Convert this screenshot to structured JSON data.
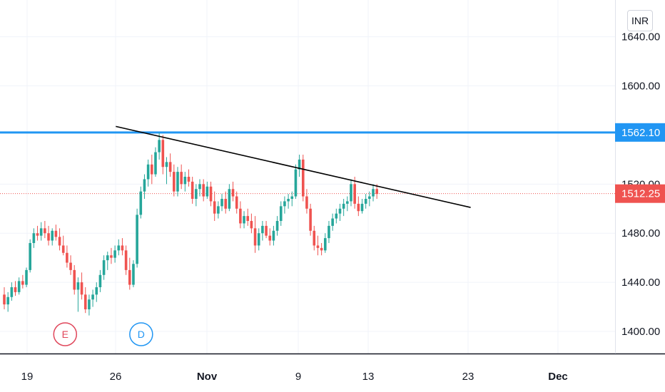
{
  "currency_label": "INR",
  "colors": {
    "up": "#26a69a",
    "down": "#ef5350",
    "h_line": "#2196f3",
    "trend": "#000000",
    "grid": "#f0f3fa"
  },
  "chart_data": {
    "type": "candlestick",
    "y_axis": {
      "range": [
        1382,
        1670
      ],
      "ticks": [
        {
          "v": 1400,
          "label": "1400.00"
        },
        {
          "v": 1440,
          "label": "1440.00"
        },
        {
          "v": 1480,
          "label": "1480.00"
        },
        {
          "v": 1520,
          "label": "1520.00"
        },
        {
          "v": 1600,
          "label": "1600.00"
        },
        {
          "v": 1640,
          "label": "1640.00"
        }
      ]
    },
    "x_axis": {
      "ticks": [
        {
          "label": "19",
          "bold": false
        },
        {
          "label": "26",
          "bold": false
        },
        {
          "label": "Nov",
          "bold": true
        },
        {
          "label": "9",
          "bold": false
        },
        {
          "label": "13",
          "bold": false
        },
        {
          "label": "23",
          "bold": false
        },
        {
          "label": "Dec",
          "bold": true
        }
      ]
    },
    "horizontal_line": {
      "value": 1562.1,
      "label": "1562.10"
    },
    "last_price": {
      "value": 1512.25,
      "label": "1512.25"
    },
    "trendline": {
      "from": {
        "date": "2020-10-26",
        "value": 1567
      },
      "to": {
        "date": "2020-11-23",
        "value": 1501
      }
    },
    "events": [
      {
        "label": "E",
        "date": "2020-10-22",
        "color": "#e0475b"
      },
      {
        "label": "D",
        "date": "2020-10-28",
        "color": "#2196f3"
      }
    ],
    "candles": [
      {
        "o": 1430,
        "h": 1436,
        "l": 1418,
        "c": 1422
      },
      {
        "o": 1422,
        "h": 1432,
        "l": 1416,
        "c": 1428
      },
      {
        "o": 1428,
        "h": 1440,
        "l": 1425,
        "c": 1436
      },
      {
        "o": 1436,
        "h": 1441,
        "l": 1429,
        "c": 1432
      },
      {
        "o": 1432,
        "h": 1444,
        "l": 1430,
        "c": 1441
      },
      {
        "o": 1441,
        "h": 1446,
        "l": 1435,
        "c": 1438
      },
      {
        "o": 1438,
        "h": 1452,
        "l": 1436,
        "c": 1450
      },
      {
        "o": 1450,
        "h": 1475,
        "l": 1448,
        "c": 1472
      },
      {
        "o": 1472,
        "h": 1484,
        "l": 1468,
        "c": 1480
      },
      {
        "o": 1480,
        "h": 1486,
        "l": 1474,
        "c": 1478
      },
      {
        "o": 1478,
        "h": 1489,
        "l": 1474,
        "c": 1484
      },
      {
        "o": 1484,
        "h": 1490,
        "l": 1476,
        "c": 1480
      },
      {
        "o": 1480,
        "h": 1486,
        "l": 1470,
        "c": 1474
      },
      {
        "o": 1474,
        "h": 1484,
        "l": 1470,
        "c": 1482
      },
      {
        "o": 1482,
        "h": 1487,
        "l": 1474,
        "c": 1477
      },
      {
        "o": 1477,
        "h": 1484,
        "l": 1466,
        "c": 1470
      },
      {
        "o": 1470,
        "h": 1478,
        "l": 1462,
        "c": 1464
      },
      {
        "o": 1464,
        "h": 1470,
        "l": 1452,
        "c": 1456
      },
      {
        "o": 1456,
        "h": 1462,
        "l": 1446,
        "c": 1450
      },
      {
        "o": 1450,
        "h": 1454,
        "l": 1430,
        "c": 1434
      },
      {
        "o": 1434,
        "h": 1444,
        "l": 1416,
        "c": 1440
      },
      {
        "o": 1440,
        "h": 1448,
        "l": 1426,
        "c": 1430
      },
      {
        "o": 1430,
        "h": 1436,
        "l": 1415,
        "c": 1418
      },
      {
        "o": 1418,
        "h": 1430,
        "l": 1413,
        "c": 1426
      },
      {
        "o": 1426,
        "h": 1434,
        "l": 1420,
        "c": 1430
      },
      {
        "o": 1430,
        "h": 1440,
        "l": 1424,
        "c": 1436
      },
      {
        "o": 1436,
        "h": 1450,
        "l": 1432,
        "c": 1446
      },
      {
        "o": 1446,
        "h": 1462,
        "l": 1442,
        "c": 1458
      },
      {
        "o": 1458,
        "h": 1465,
        "l": 1450,
        "c": 1462
      },
      {
        "o": 1462,
        "h": 1468,
        "l": 1455,
        "c": 1460
      },
      {
        "o": 1460,
        "h": 1470,
        "l": 1456,
        "c": 1466
      },
      {
        "o": 1466,
        "h": 1475,
        "l": 1462,
        "c": 1470
      },
      {
        "o": 1470,
        "h": 1476,
        "l": 1462,
        "c": 1466
      },
      {
        "o": 1466,
        "h": 1470,
        "l": 1446,
        "c": 1450
      },
      {
        "o": 1450,
        "h": 1460,
        "l": 1434,
        "c": 1438
      },
      {
        "o": 1438,
        "h": 1458,
        "l": 1436,
        "c": 1455
      },
      {
        "o": 1455,
        "h": 1500,
        "l": 1452,
        "c": 1495
      },
      {
        "o": 1495,
        "h": 1518,
        "l": 1492,
        "c": 1514
      },
      {
        "o": 1514,
        "h": 1528,
        "l": 1508,
        "c": 1524
      },
      {
        "o": 1524,
        "h": 1540,
        "l": 1518,
        "c": 1536
      },
      {
        "o": 1536,
        "h": 1544,
        "l": 1520,
        "c": 1528
      },
      {
        "o": 1528,
        "h": 1550,
        "l": 1526,
        "c": 1546
      },
      {
        "o": 1546,
        "h": 1562,
        "l": 1540,
        "c": 1556
      },
      {
        "o": 1556,
        "h": 1560,
        "l": 1528,
        "c": 1534
      },
      {
        "o": 1534,
        "h": 1542,
        "l": 1520,
        "c": 1538
      },
      {
        "o": 1538,
        "h": 1545,
        "l": 1526,
        "c": 1530
      },
      {
        "o": 1530,
        "h": 1536,
        "l": 1510,
        "c": 1514
      },
      {
        "o": 1514,
        "h": 1534,
        "l": 1510,
        "c": 1530
      },
      {
        "o": 1530,
        "h": 1536,
        "l": 1516,
        "c": 1520
      },
      {
        "o": 1520,
        "h": 1530,
        "l": 1514,
        "c": 1526
      },
      {
        "o": 1526,
        "h": 1532,
        "l": 1518,
        "c": 1522
      },
      {
        "o": 1522,
        "h": 1526,
        "l": 1504,
        "c": 1508
      },
      {
        "o": 1508,
        "h": 1520,
        "l": 1502,
        "c": 1516
      },
      {
        "o": 1516,
        "h": 1524,
        "l": 1510,
        "c": 1520
      },
      {
        "o": 1520,
        "h": 1524,
        "l": 1506,
        "c": 1510
      },
      {
        "o": 1510,
        "h": 1522,
        "l": 1508,
        "c": 1518
      },
      {
        "o": 1518,
        "h": 1522,
        "l": 1502,
        "c": 1506
      },
      {
        "o": 1506,
        "h": 1514,
        "l": 1490,
        "c": 1496
      },
      {
        "o": 1496,
        "h": 1506,
        "l": 1492,
        "c": 1502
      },
      {
        "o": 1502,
        "h": 1512,
        "l": 1498,
        "c": 1508
      },
      {
        "o": 1508,
        "h": 1514,
        "l": 1496,
        "c": 1500
      },
      {
        "o": 1500,
        "h": 1520,
        "l": 1498,
        "c": 1516
      },
      {
        "o": 1516,
        "h": 1522,
        "l": 1506,
        "c": 1510
      },
      {
        "o": 1510,
        "h": 1514,
        "l": 1496,
        "c": 1500
      },
      {
        "o": 1500,
        "h": 1506,
        "l": 1484,
        "c": 1488
      },
      {
        "o": 1488,
        "h": 1498,
        "l": 1484,
        "c": 1494
      },
      {
        "o": 1494,
        "h": 1500,
        "l": 1486,
        "c": 1490
      },
      {
        "o": 1490,
        "h": 1496,
        "l": 1480,
        "c": 1484
      },
      {
        "o": 1484,
        "h": 1494,
        "l": 1464,
        "c": 1470
      },
      {
        "o": 1470,
        "h": 1484,
        "l": 1466,
        "c": 1480
      },
      {
        "o": 1480,
        "h": 1490,
        "l": 1474,
        "c": 1486
      },
      {
        "o": 1486,
        "h": 1490,
        "l": 1476,
        "c": 1478
      },
      {
        "o": 1478,
        "h": 1484,
        "l": 1470,
        "c": 1474
      },
      {
        "o": 1474,
        "h": 1486,
        "l": 1470,
        "c": 1482
      },
      {
        "o": 1482,
        "h": 1494,
        "l": 1478,
        "c": 1490
      },
      {
        "o": 1490,
        "h": 1506,
        "l": 1486,
        "c": 1502
      },
      {
        "o": 1502,
        "h": 1510,
        "l": 1496,
        "c": 1506
      },
      {
        "o": 1506,
        "h": 1512,
        "l": 1500,
        "c": 1508
      },
      {
        "o": 1508,
        "h": 1514,
        "l": 1502,
        "c": 1510
      },
      {
        "o": 1510,
        "h": 1536,
        "l": 1508,
        "c": 1532
      },
      {
        "o": 1532,
        "h": 1544,
        "l": 1526,
        "c": 1540
      },
      {
        "o": 1540,
        "h": 1544,
        "l": 1506,
        "c": 1510
      },
      {
        "o": 1510,
        "h": 1516,
        "l": 1496,
        "c": 1500
      },
      {
        "o": 1500,
        "h": 1504,
        "l": 1478,
        "c": 1482
      },
      {
        "o": 1482,
        "h": 1486,
        "l": 1466,
        "c": 1470
      },
      {
        "o": 1470,
        "h": 1478,
        "l": 1462,
        "c": 1468
      },
      {
        "o": 1468,
        "h": 1472,
        "l": 1462,
        "c": 1466
      },
      {
        "o": 1466,
        "h": 1480,
        "l": 1464,
        "c": 1476
      },
      {
        "o": 1476,
        "h": 1490,
        "l": 1472,
        "c": 1486
      },
      {
        "o": 1486,
        "h": 1496,
        "l": 1482,
        "c": 1492
      },
      {
        "o": 1492,
        "h": 1500,
        "l": 1488,
        "c": 1496
      },
      {
        "o": 1496,
        "h": 1504,
        "l": 1490,
        "c": 1500
      },
      {
        "o": 1500,
        "h": 1508,
        "l": 1494,
        "c": 1504
      },
      {
        "o": 1504,
        "h": 1510,
        "l": 1498,
        "c": 1506
      },
      {
        "o": 1506,
        "h": 1524,
        "l": 1502,
        "c": 1520
      },
      {
        "o": 1520,
        "h": 1526,
        "l": 1500,
        "c": 1504
      },
      {
        "o": 1504,
        "h": 1510,
        "l": 1494,
        "c": 1498
      },
      {
        "o": 1498,
        "h": 1508,
        "l": 1496,
        "c": 1504
      },
      {
        "o": 1504,
        "h": 1512,
        "l": 1500,
        "c": 1508
      },
      {
        "o": 1508,
        "h": 1514,
        "l": 1502,
        "c": 1510
      },
      {
        "o": 1510,
        "h": 1520,
        "l": 1506,
        "c": 1516
      },
      {
        "o": 1516,
        "h": 1520,
        "l": 1508,
        "c": 1512
      }
    ]
  }
}
